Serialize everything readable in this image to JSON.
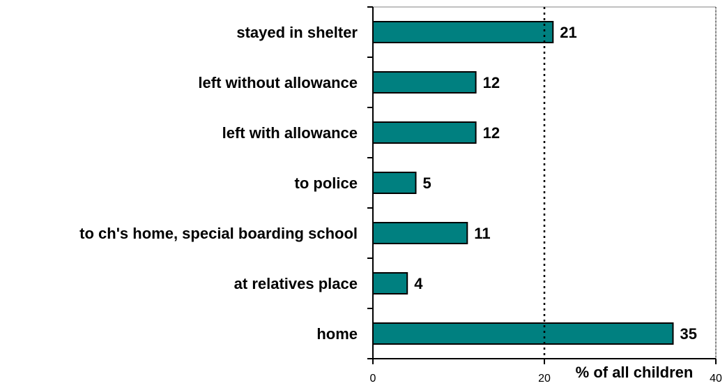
{
  "chart_data": {
    "type": "bar",
    "orientation": "horizontal",
    "categories": [
      "stayed in shelter",
      "left without allowance",
      "left with allowance",
      "to police",
      "to ch's home, special boarding school",
      "at relatives place",
      "home"
    ],
    "values": [
      21,
      12,
      12,
      5,
      11,
      4,
      35
    ],
    "value_labels": [
      "21",
      "12",
      "12",
      "5",
      "11",
      "4",
      "35"
    ],
    "xlabel": "% of all children",
    "xlim": [
      0,
      40
    ],
    "xticks": [
      0,
      20,
      40
    ],
    "xtick_labels": [
      "0",
      "20",
      "40"
    ],
    "reference_line": 20,
    "bar_color": "#008080",
    "grid": false
  }
}
